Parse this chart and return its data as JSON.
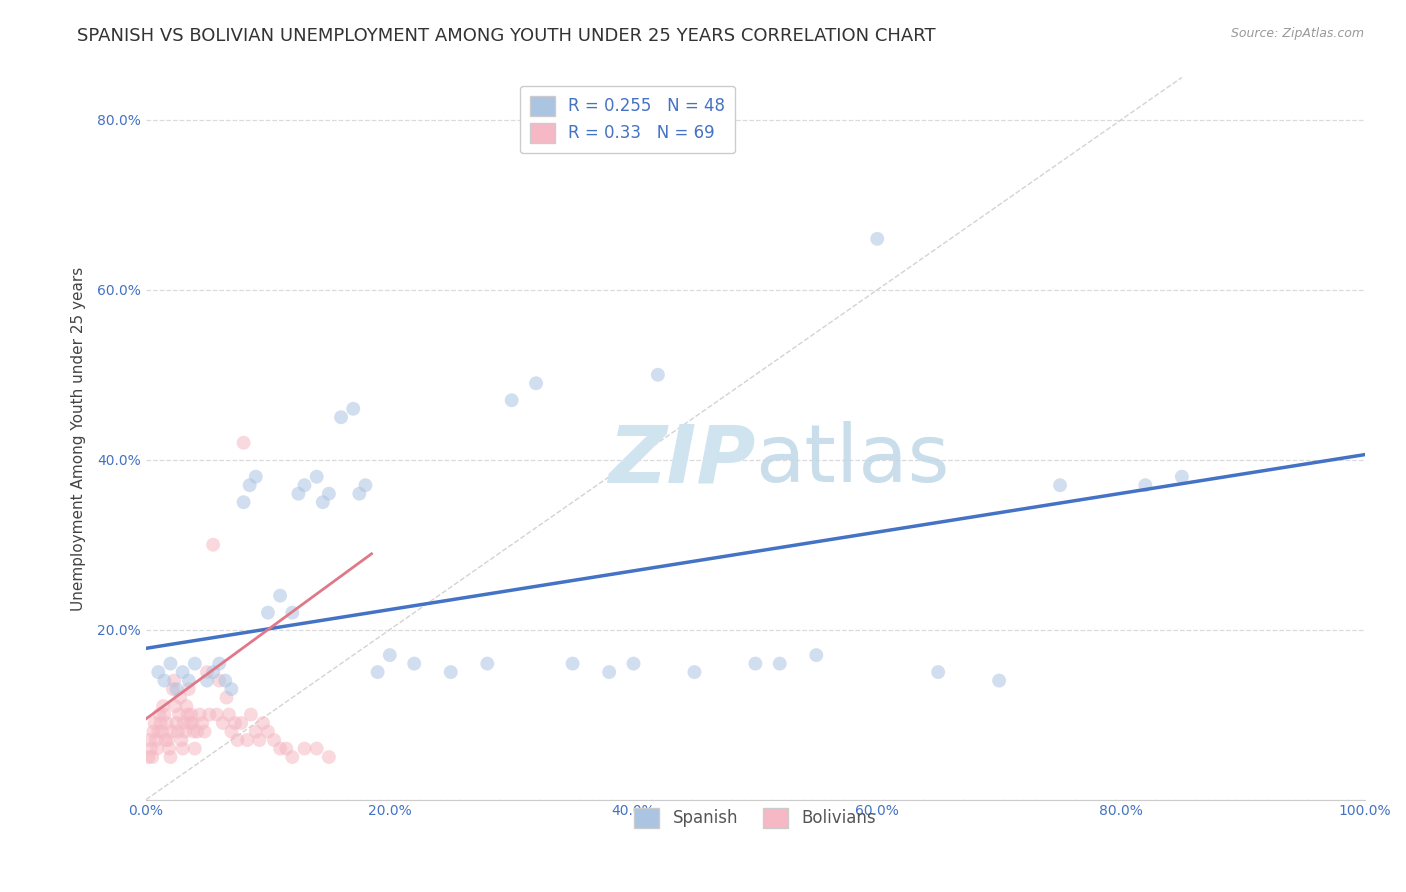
{
  "title": "SPANISH VS BOLIVIAN UNEMPLOYMENT AMONG YOUTH UNDER 25 YEARS CORRELATION CHART",
  "source": "Source: ZipAtlas.com",
  "ylabel": "Unemployment Among Youth under 25 years",
  "xlim": [
    0,
    1.0
  ],
  "ylim": [
    0,
    0.85
  ],
  "xticks": [
    0.0,
    0.2,
    0.4,
    0.6,
    0.8,
    1.0
  ],
  "xtick_labels": [
    "0.0%",
    "20.0%",
    "40.0%",
    "60.0%",
    "80.0%",
    "100.0%"
  ],
  "yticks": [
    0.0,
    0.2,
    0.4,
    0.6,
    0.8
  ],
  "ytick_labels": [
    "",
    "20.0%",
    "40.0%",
    "60.0%",
    "80.0%"
  ],
  "spanish_color": "#aac4e2",
  "bolivian_color": "#f5b8c4",
  "spanish_line_color": "#4472c4",
  "bolivian_line_color": "#e07888",
  "diagonal_color": "#c8c8c8",
  "R_spanish": 0.255,
  "N_spanish": 48,
  "R_bolivian": 0.33,
  "N_bolivian": 69,
  "legend_label_spanish": "Spanish",
  "legend_label_bolivian": "Bolivians",
  "spanish_x": [
    0.01,
    0.015,
    0.02,
    0.025,
    0.03,
    0.035,
    0.04,
    0.05,
    0.055,
    0.06,
    0.065,
    0.07,
    0.08,
    0.085,
    0.09,
    0.1,
    0.11,
    0.12,
    0.125,
    0.13,
    0.14,
    0.145,
    0.15,
    0.16,
    0.17,
    0.175,
    0.18,
    0.19,
    0.2,
    0.22,
    0.25,
    0.28,
    0.3,
    0.32,
    0.35,
    0.38,
    0.4,
    0.42,
    0.45,
    0.5,
    0.52,
    0.55,
    0.6,
    0.65,
    0.7,
    0.75,
    0.82,
    0.85
  ],
  "spanish_y": [
    0.15,
    0.14,
    0.16,
    0.13,
    0.15,
    0.14,
    0.16,
    0.14,
    0.15,
    0.16,
    0.14,
    0.13,
    0.35,
    0.37,
    0.38,
    0.22,
    0.24,
    0.22,
    0.36,
    0.37,
    0.38,
    0.35,
    0.36,
    0.45,
    0.46,
    0.36,
    0.37,
    0.15,
    0.17,
    0.16,
    0.15,
    0.16,
    0.47,
    0.49,
    0.16,
    0.15,
    0.16,
    0.5,
    0.15,
    0.16,
    0.16,
    0.17,
    0.66,
    0.15,
    0.14,
    0.37,
    0.37,
    0.38
  ],
  "bolivian_x": [
    0.002,
    0.003,
    0.004,
    0.005,
    0.006,
    0.007,
    0.008,
    0.009,
    0.01,
    0.011,
    0.012,
    0.013,
    0.014,
    0.015,
    0.016,
    0.017,
    0.018,
    0.019,
    0.02,
    0.021,
    0.022,
    0.023,
    0.024,
    0.025,
    0.026,
    0.027,
    0.028,
    0.029,
    0.03,
    0.031,
    0.032,
    0.033,
    0.034,
    0.035,
    0.036,
    0.037,
    0.038,
    0.039,
    0.04,
    0.042,
    0.044,
    0.046,
    0.048,
    0.05,
    0.052,
    0.055,
    0.058,
    0.06,
    0.063,
    0.066,
    0.068,
    0.07,
    0.073,
    0.075,
    0.078,
    0.08,
    0.083,
    0.086,
    0.09,
    0.093,
    0.096,
    0.1,
    0.105,
    0.11,
    0.115,
    0.12,
    0.13,
    0.14,
    0.15
  ],
  "bolivian_y": [
    0.05,
    0.07,
    0.06,
    0.05,
    0.08,
    0.09,
    0.07,
    0.06,
    0.08,
    0.1,
    0.09,
    0.08,
    0.11,
    0.1,
    0.07,
    0.09,
    0.07,
    0.06,
    0.05,
    0.08,
    0.13,
    0.14,
    0.11,
    0.09,
    0.08,
    0.1,
    0.12,
    0.07,
    0.06,
    0.09,
    0.08,
    0.11,
    0.1,
    0.13,
    0.09,
    0.1,
    0.09,
    0.08,
    0.06,
    0.08,
    0.1,
    0.09,
    0.08,
    0.15,
    0.1,
    0.3,
    0.1,
    0.14,
    0.09,
    0.12,
    0.1,
    0.08,
    0.09,
    0.07,
    0.09,
    0.42,
    0.07,
    0.1,
    0.08,
    0.07,
    0.09,
    0.08,
    0.07,
    0.06,
    0.06,
    0.05,
    0.06,
    0.06,
    0.05
  ],
  "marker_size": 100,
  "alpha": 0.55,
  "background_color": "#ffffff",
  "grid_color": "#cccccc",
  "watermark_color": "#d0e4f0",
  "tick_color": "#4472c4",
  "title_fontsize": 13,
  "axis_label_fontsize": 11,
  "tick_fontsize": 10,
  "legend_fontsize": 12,
  "spanish_line_intercept": 0.178,
  "spanish_line_slope": 0.228,
  "bolivian_line_intercept": 0.095,
  "bolivian_line_slope": 1.05
}
